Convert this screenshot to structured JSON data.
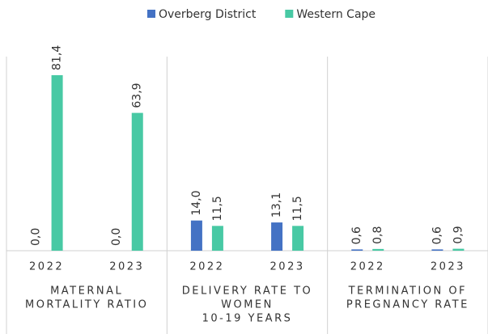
{
  "chart_data": {
    "type": "bar",
    "categories": [
      "2022",
      "2023",
      "2022",
      "2023",
      "2022",
      "2023"
    ],
    "groups": [
      [
        "MATERNAL",
        "MORTALITY RATIO"
      ],
      [
        "DELIVERY RATE TO",
        "WOMEN",
        "10-19 YEARS"
      ],
      [
        "TERMINATION OF",
        "PREGNANCY RATE"
      ]
    ],
    "series": [
      {
        "name": "Overberg District",
        "color": "#4472c4",
        "values": [
          0.0,
          0.0,
          14.0,
          13.1,
          0.6,
          0.6
        ],
        "value_labels": [
          "0,0",
          "0,0",
          "14,0",
          "13,1",
          "0,6",
          "0,6"
        ]
      },
      {
        "name": "Western Cape",
        "color": "#48c9a4",
        "values": [
          81.4,
          63.9,
          11.5,
          11.5,
          0.8,
          0.9
        ],
        "value_labels": [
          "81,4",
          "63,9",
          "11,5",
          "11,5",
          "0,8",
          "0,9"
        ]
      }
    ],
    "ylim": [
      0,
      90
    ],
    "legend": "top"
  }
}
